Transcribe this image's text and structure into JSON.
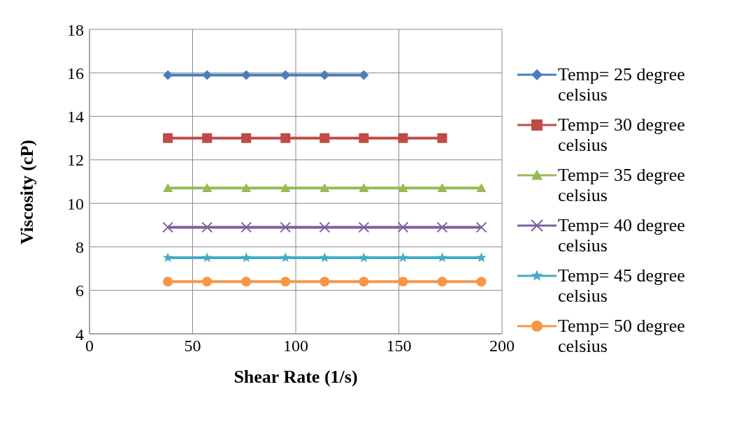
{
  "chart_data": {
    "type": "line",
    "xlabel": "Shear Rate (1/s)",
    "ylabel": "Viscosity (cP)",
    "x": [
      38,
      57,
      76,
      95,
      114,
      133,
      152,
      171,
      190
    ],
    "series": [
      {
        "name": "Temp= 25 degree celsius",
        "color": "#4a7ebb",
        "marker": "diamond",
        "values": [
          15.9,
          15.9,
          15.9,
          15.9,
          15.9,
          15.9,
          null,
          null,
          null
        ]
      },
      {
        "name": "Temp= 30 degree celsius",
        "color": "#be4b48",
        "marker": "square",
        "values": [
          13.0,
          13.0,
          13.0,
          13.0,
          13.0,
          13.0,
          13.0,
          13.0,
          null
        ]
      },
      {
        "name": "Temp= 35 degree celsius",
        "color": "#98b954",
        "marker": "triangle",
        "values": [
          10.7,
          10.7,
          10.7,
          10.7,
          10.7,
          10.7,
          10.7,
          10.7,
          10.7
        ]
      },
      {
        "name": "Temp= 40 degree celsius",
        "color": "#7d60a0",
        "marker": "cross",
        "values": [
          8.9,
          8.9,
          8.9,
          8.9,
          8.9,
          8.9,
          8.9,
          8.9,
          8.9
        ]
      },
      {
        "name": "Temp= 45 degree celsius",
        "color": "#46aac5",
        "marker": "star",
        "values": [
          7.5,
          7.5,
          7.5,
          7.5,
          7.5,
          7.5,
          7.5,
          7.5,
          7.5
        ]
      },
      {
        "name": "Temp= 50 degree celsius",
        "color": "#f79646",
        "marker": "circle",
        "values": [
          6.4,
          6.4,
          6.4,
          6.4,
          6.4,
          6.4,
          6.4,
          6.4,
          6.4
        ]
      }
    ],
    "xlim": [
      0,
      200
    ],
    "xticks": [
      0,
      50,
      100,
      150,
      200
    ],
    "ylim": [
      4,
      18
    ],
    "yticks": [
      4,
      6,
      8,
      10,
      12,
      14,
      16,
      18
    ],
    "grid": true,
    "legend": "right",
    "line_style": "solid"
  }
}
